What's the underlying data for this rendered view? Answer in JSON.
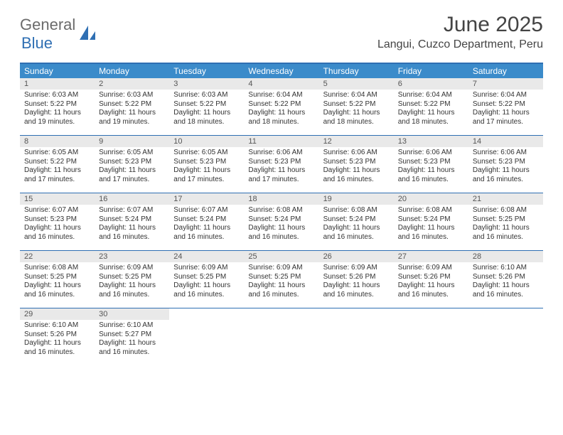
{
  "brand": {
    "part1": "General",
    "part2": "Blue"
  },
  "title": "June 2025",
  "subtitle": "Langui, Cuzco Department, Peru",
  "colors": {
    "header_bg": "#3b8bca",
    "border": "#2f6fb3",
    "daynum_bg": "#e9e9e9",
    "text": "#333333"
  },
  "dow": [
    "Sunday",
    "Monday",
    "Tuesday",
    "Wednesday",
    "Thursday",
    "Friday",
    "Saturday"
  ],
  "weeks": [
    [
      {
        "n": "1",
        "sr": "Sunrise: 6:03 AM",
        "ss": "Sunset: 5:22 PM",
        "d1": "Daylight: 11 hours",
        "d2": "and 19 minutes."
      },
      {
        "n": "2",
        "sr": "Sunrise: 6:03 AM",
        "ss": "Sunset: 5:22 PM",
        "d1": "Daylight: 11 hours",
        "d2": "and 19 minutes."
      },
      {
        "n": "3",
        "sr": "Sunrise: 6:03 AM",
        "ss": "Sunset: 5:22 PM",
        "d1": "Daylight: 11 hours",
        "d2": "and 18 minutes."
      },
      {
        "n": "4",
        "sr": "Sunrise: 6:04 AM",
        "ss": "Sunset: 5:22 PM",
        "d1": "Daylight: 11 hours",
        "d2": "and 18 minutes."
      },
      {
        "n": "5",
        "sr": "Sunrise: 6:04 AM",
        "ss": "Sunset: 5:22 PM",
        "d1": "Daylight: 11 hours",
        "d2": "and 18 minutes."
      },
      {
        "n": "6",
        "sr": "Sunrise: 6:04 AM",
        "ss": "Sunset: 5:22 PM",
        "d1": "Daylight: 11 hours",
        "d2": "and 18 minutes."
      },
      {
        "n": "7",
        "sr": "Sunrise: 6:04 AM",
        "ss": "Sunset: 5:22 PM",
        "d1": "Daylight: 11 hours",
        "d2": "and 17 minutes."
      }
    ],
    [
      {
        "n": "8",
        "sr": "Sunrise: 6:05 AM",
        "ss": "Sunset: 5:22 PM",
        "d1": "Daylight: 11 hours",
        "d2": "and 17 minutes."
      },
      {
        "n": "9",
        "sr": "Sunrise: 6:05 AM",
        "ss": "Sunset: 5:23 PM",
        "d1": "Daylight: 11 hours",
        "d2": "and 17 minutes."
      },
      {
        "n": "10",
        "sr": "Sunrise: 6:05 AM",
        "ss": "Sunset: 5:23 PM",
        "d1": "Daylight: 11 hours",
        "d2": "and 17 minutes."
      },
      {
        "n": "11",
        "sr": "Sunrise: 6:06 AM",
        "ss": "Sunset: 5:23 PM",
        "d1": "Daylight: 11 hours",
        "d2": "and 17 minutes."
      },
      {
        "n": "12",
        "sr": "Sunrise: 6:06 AM",
        "ss": "Sunset: 5:23 PM",
        "d1": "Daylight: 11 hours",
        "d2": "and 16 minutes."
      },
      {
        "n": "13",
        "sr": "Sunrise: 6:06 AM",
        "ss": "Sunset: 5:23 PM",
        "d1": "Daylight: 11 hours",
        "d2": "and 16 minutes."
      },
      {
        "n": "14",
        "sr": "Sunrise: 6:06 AM",
        "ss": "Sunset: 5:23 PM",
        "d1": "Daylight: 11 hours",
        "d2": "and 16 minutes."
      }
    ],
    [
      {
        "n": "15",
        "sr": "Sunrise: 6:07 AM",
        "ss": "Sunset: 5:23 PM",
        "d1": "Daylight: 11 hours",
        "d2": "and 16 minutes."
      },
      {
        "n": "16",
        "sr": "Sunrise: 6:07 AM",
        "ss": "Sunset: 5:24 PM",
        "d1": "Daylight: 11 hours",
        "d2": "and 16 minutes."
      },
      {
        "n": "17",
        "sr": "Sunrise: 6:07 AM",
        "ss": "Sunset: 5:24 PM",
        "d1": "Daylight: 11 hours",
        "d2": "and 16 minutes."
      },
      {
        "n": "18",
        "sr": "Sunrise: 6:08 AM",
        "ss": "Sunset: 5:24 PM",
        "d1": "Daylight: 11 hours",
        "d2": "and 16 minutes."
      },
      {
        "n": "19",
        "sr": "Sunrise: 6:08 AM",
        "ss": "Sunset: 5:24 PM",
        "d1": "Daylight: 11 hours",
        "d2": "and 16 minutes."
      },
      {
        "n": "20",
        "sr": "Sunrise: 6:08 AM",
        "ss": "Sunset: 5:24 PM",
        "d1": "Daylight: 11 hours",
        "d2": "and 16 minutes."
      },
      {
        "n": "21",
        "sr": "Sunrise: 6:08 AM",
        "ss": "Sunset: 5:25 PM",
        "d1": "Daylight: 11 hours",
        "d2": "and 16 minutes."
      }
    ],
    [
      {
        "n": "22",
        "sr": "Sunrise: 6:08 AM",
        "ss": "Sunset: 5:25 PM",
        "d1": "Daylight: 11 hours",
        "d2": "and 16 minutes."
      },
      {
        "n": "23",
        "sr": "Sunrise: 6:09 AM",
        "ss": "Sunset: 5:25 PM",
        "d1": "Daylight: 11 hours",
        "d2": "and 16 minutes."
      },
      {
        "n": "24",
        "sr": "Sunrise: 6:09 AM",
        "ss": "Sunset: 5:25 PM",
        "d1": "Daylight: 11 hours",
        "d2": "and 16 minutes."
      },
      {
        "n": "25",
        "sr": "Sunrise: 6:09 AM",
        "ss": "Sunset: 5:25 PM",
        "d1": "Daylight: 11 hours",
        "d2": "and 16 minutes."
      },
      {
        "n": "26",
        "sr": "Sunrise: 6:09 AM",
        "ss": "Sunset: 5:26 PM",
        "d1": "Daylight: 11 hours",
        "d2": "and 16 minutes."
      },
      {
        "n": "27",
        "sr": "Sunrise: 6:09 AM",
        "ss": "Sunset: 5:26 PM",
        "d1": "Daylight: 11 hours",
        "d2": "and 16 minutes."
      },
      {
        "n": "28",
        "sr": "Sunrise: 6:10 AM",
        "ss": "Sunset: 5:26 PM",
        "d1": "Daylight: 11 hours",
        "d2": "and 16 minutes."
      }
    ],
    [
      {
        "n": "29",
        "sr": "Sunrise: 6:10 AM",
        "ss": "Sunset: 5:26 PM",
        "d1": "Daylight: 11 hours",
        "d2": "and 16 minutes."
      },
      {
        "n": "30",
        "sr": "Sunrise: 6:10 AM",
        "ss": "Sunset: 5:27 PM",
        "d1": "Daylight: 11 hours",
        "d2": "and 16 minutes."
      },
      {
        "blank": true
      },
      {
        "blank": true
      },
      {
        "blank": true
      },
      {
        "blank": true
      },
      {
        "blank": true
      }
    ]
  ]
}
